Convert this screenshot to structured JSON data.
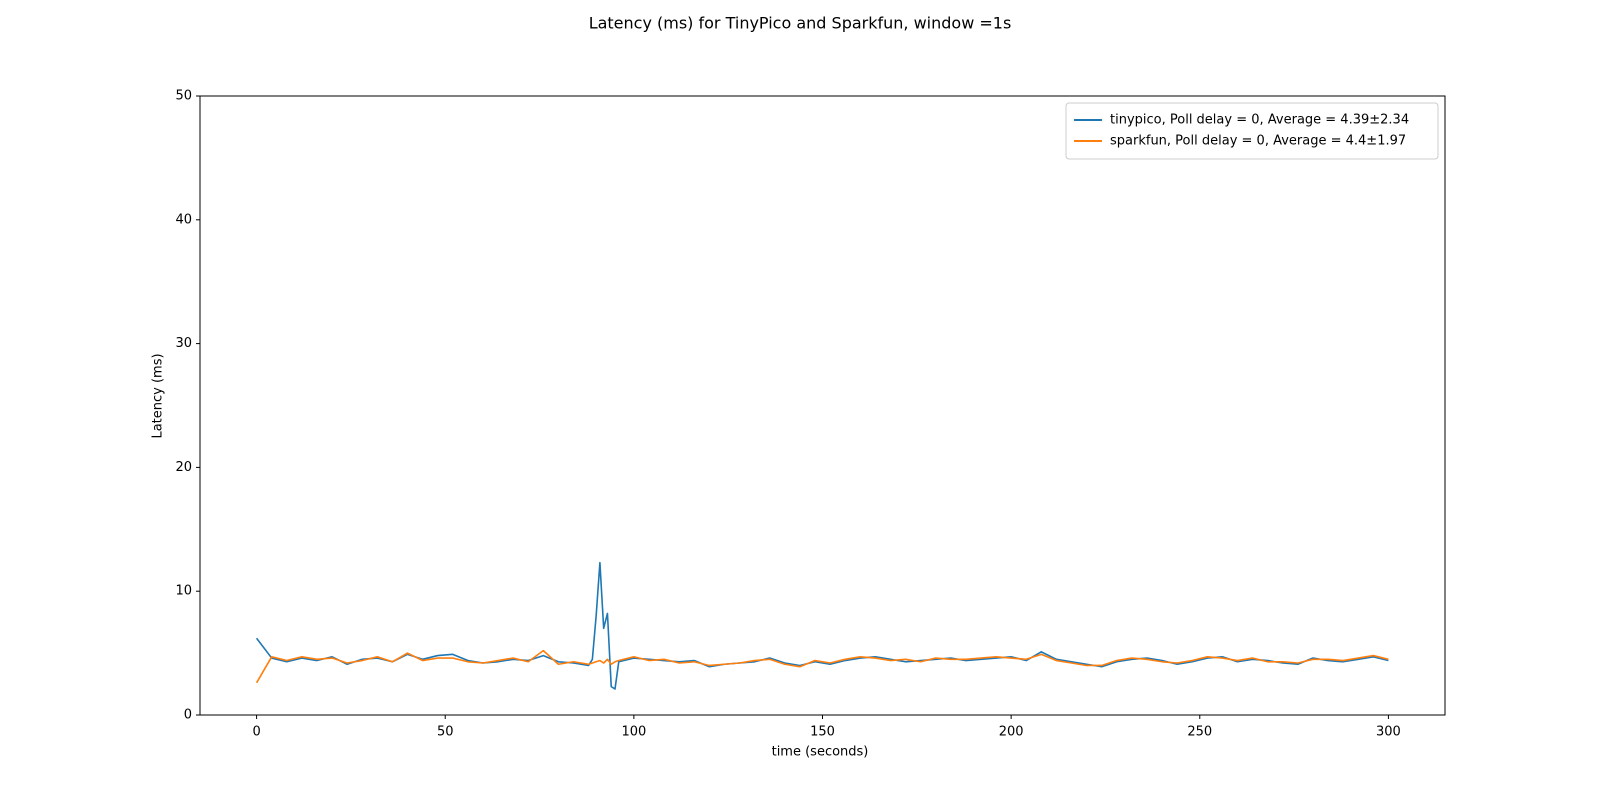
{
  "chart_data": {
    "type": "line",
    "title": "Latency (ms) for TinyPico and Sparkfun, window =1s",
    "xlabel": "time (seconds)",
    "ylabel": "Latency (ms)",
    "x": [
      0,
      4,
      8,
      12,
      16,
      20,
      24,
      28,
      32,
      36,
      40,
      44,
      48,
      52,
      56,
      60,
      64,
      68,
      72,
      76,
      80,
      84,
      88,
      89,
      90,
      91,
      92,
      93,
      94,
      95,
      96,
      100,
      104,
      108,
      112,
      116,
      120,
      124,
      128,
      132,
      136,
      140,
      144,
      148,
      152,
      156,
      160,
      164,
      168,
      172,
      176,
      180,
      184,
      188,
      192,
      196,
      200,
      204,
      208,
      212,
      216,
      220,
      224,
      228,
      232,
      236,
      240,
      244,
      248,
      252,
      256,
      260,
      264,
      268,
      272,
      276,
      280,
      284,
      288,
      292,
      296,
      300
    ],
    "series": [
      {
        "name": "tinypico, Poll delay = 0, Average = 4.39±2.34",
        "color": "#1f77b4",
        "values": [
          6.2,
          4.6,
          4.3,
          4.6,
          4.4,
          4.7,
          4.1,
          4.5,
          4.6,
          4.3,
          4.9,
          4.5,
          4.8,
          4.9,
          4.4,
          4.2,
          4.3,
          4.5,
          4.4,
          4.8,
          4.3,
          4.2,
          4.0,
          4.5,
          8.0,
          12.3,
          7.0,
          8.2,
          2.3,
          2.1,
          4.3,
          4.6,
          4.5,
          4.4,
          4.3,
          4.4,
          3.9,
          4.1,
          4.2,
          4.3,
          4.6,
          4.2,
          4.0,
          4.3,
          4.1,
          4.4,
          4.6,
          4.7,
          4.5,
          4.3,
          4.4,
          4.5,
          4.6,
          4.4,
          4.5,
          4.6,
          4.7,
          4.4,
          5.1,
          4.5,
          4.3,
          4.1,
          3.9,
          4.3,
          4.5,
          4.6,
          4.4,
          4.1,
          4.3,
          4.6,
          4.7,
          4.3,
          4.5,
          4.4,
          4.2,
          4.1,
          4.6,
          4.4,
          4.3,
          4.5,
          4.7,
          4.4
        ]
      },
      {
        "name": "sparkfun, Poll delay = 0, Average = 4.4±1.97",
        "color": "#ff7f0e",
        "values": [
          2.6,
          4.7,
          4.4,
          4.7,
          4.5,
          4.6,
          4.2,
          4.4,
          4.7,
          4.3,
          5.0,
          4.4,
          4.6,
          4.6,
          4.3,
          4.2,
          4.4,
          4.6,
          4.3,
          5.2,
          4.1,
          4.3,
          4.1,
          4.2,
          4.3,
          4.4,
          4.2,
          4.5,
          4.1,
          4.3,
          4.4,
          4.7,
          4.4,
          4.5,
          4.2,
          4.3,
          4.0,
          4.1,
          4.2,
          4.4,
          4.5,
          4.1,
          3.9,
          4.4,
          4.2,
          4.5,
          4.7,
          4.6,
          4.4,
          4.5,
          4.3,
          4.6,
          4.5,
          4.5,
          4.6,
          4.7,
          4.6,
          4.5,
          4.9,
          4.4,
          4.2,
          4.0,
          4.0,
          4.4,
          4.6,
          4.5,
          4.3,
          4.2,
          4.4,
          4.7,
          4.6,
          4.4,
          4.6,
          4.3,
          4.3,
          4.2,
          4.5,
          4.5,
          4.4,
          4.6,
          4.8,
          4.5
        ]
      }
    ],
    "xlim": [
      -15,
      315
    ],
    "ylim": [
      0,
      50
    ],
    "xticks": [
      0,
      50,
      100,
      150,
      200,
      250,
      300
    ],
    "yticks": [
      0,
      10,
      20,
      30,
      40,
      50
    ],
    "grid": false,
    "legend": "upper right"
  }
}
